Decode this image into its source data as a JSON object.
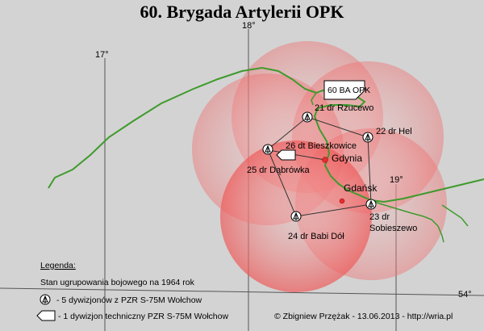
{
  "title": "60. Brygada Artylerii OPK",
  "grid": {
    "lon17": "17°",
    "lon18": "18°",
    "lon19": "19°",
    "lat54": "54°"
  },
  "hq_label": "60 BA OPK",
  "units": [
    {
      "label": "21 dr Rzucewo"
    },
    {
      "label": "22 dr Hel"
    },
    {
      "label": "25 dr Dąbrówka"
    },
    {
      "label": "24 dr Babi Dół"
    },
    {
      "label_line1": "23 dr",
      "label_line2": "Sobieszewo"
    }
  ],
  "tech_unit": {
    "label": "26 dt Bieszkowice"
  },
  "cities": [
    {
      "name": "Gdynia"
    },
    {
      "name": "Gdańsk"
    }
  ],
  "legend": {
    "title": "Legenda:",
    "subtitle": "Stan ugrupowania bojowego na 1964 rok",
    "item1": "- 5 dywizjonów z PZR  S-75M Wołchow",
    "item2": "- 1 dywizjon techniczny PZR  S-75M Wołchow"
  },
  "copyright": "© Zbigniew Przężak - 13.06.2013 - http://wria.pl",
  "colors": {
    "background": "#d3d3d3",
    "coast": "#3f9a2c",
    "range": "#f08a8a",
    "marker": "#e03030"
  }
}
